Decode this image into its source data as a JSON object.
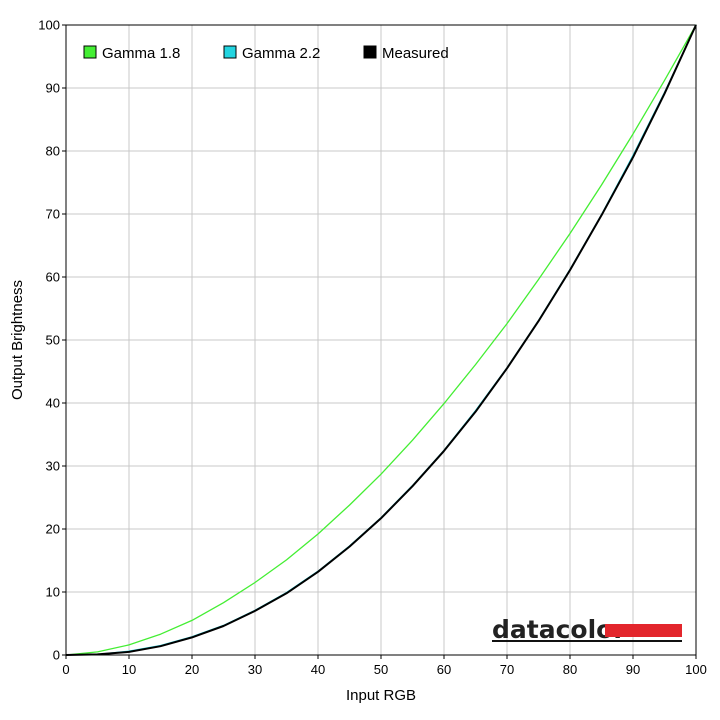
{
  "chart_data": {
    "type": "line",
    "xlabel": "Input RGB",
    "ylabel": "Output Brightness",
    "xlim": [
      0,
      100
    ],
    "ylim": [
      0,
      100
    ],
    "xticks": [
      "0",
      "10",
      "20",
      "30",
      "40",
      "50",
      "60",
      "70",
      "80",
      "90",
      "100"
    ],
    "yticks": [
      "0",
      "10",
      "20",
      "30",
      "40",
      "50",
      "60",
      "70",
      "80",
      "90",
      "100"
    ],
    "grid": true,
    "legend_position": "top-left",
    "x": [
      0,
      5,
      10,
      15,
      20,
      25,
      30,
      35,
      40,
      45,
      50,
      55,
      60,
      65,
      70,
      75,
      80,
      85,
      90,
      95,
      100
    ],
    "series": [
      {
        "name": "Gamma 1.8",
        "color": "#44ee33",
        "values": [
          0,
          0.5,
          1.6,
          3.3,
          5.5,
          8.3,
          11.5,
          15.1,
          19.2,
          23.8,
          28.7,
          34.1,
          39.9,
          46.1,
          52.6,
          59.6,
          66.9,
          74.6,
          82.7,
          91.2,
          100
        ]
      },
      {
        "name": "Gamma 2.2",
        "color": "#22d4e0",
        "values": [
          0,
          0.1,
          0.6,
          1.5,
          2.9,
          4.7,
          7.1,
          9.9,
          13.3,
          17.3,
          21.8,
          26.9,
          32.5,
          38.8,
          45.6,
          53.1,
          61.2,
          69.9,
          79.3,
          89.3,
          100
        ]
      },
      {
        "name": "Measured",
        "color": "#000000",
        "values": [
          0,
          0.1,
          0.5,
          1.4,
          2.8,
          4.6,
          7.0,
          9.8,
          13.2,
          17.2,
          21.7,
          26.8,
          32.4,
          38.6,
          45.5,
          53.0,
          61.1,
          69.8,
          79.0,
          89.1,
          100
        ]
      }
    ]
  },
  "brand": {
    "name": "datacolor",
    "bar_color": "#e3262c",
    "underline_color": "#111111"
  }
}
